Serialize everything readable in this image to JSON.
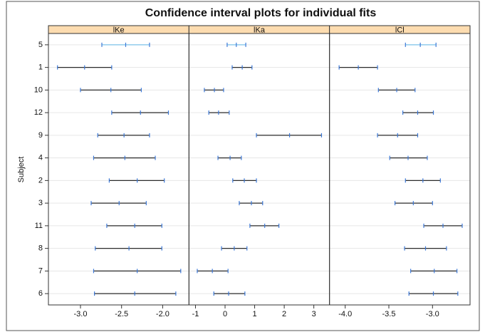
{
  "chart_data": {
    "type": "interval",
    "title": "Confidence interval plots for individual fits",
    "ylabel": "Subject",
    "categories": [
      "5",
      "1",
      "10",
      "12",
      "9",
      "4",
      "2",
      "3",
      "11",
      "8",
      "7",
      "6"
    ],
    "colors": [
      "#7cc3ea",
      "#2b2b2b",
      "#2b2b2b",
      "#2b2b2b",
      "#2b2b2b",
      "#2b2b2b",
      "#2b2b2b",
      "#2b2b2b",
      "#2b2b2b",
      "#2b2b2b",
      "#2b2b2b",
      "#2b2b2b"
    ],
    "tick_color": "#3b78d8",
    "strip_color": "#fddcb0",
    "panels": [
      {
        "name": "lKe",
        "xlim": [
          -3.39,
          -1.68
        ],
        "xticks": [
          {
            "value": -3,
            "label": "-3.0"
          },
          {
            "value": -2.5,
            "label": "-2.5"
          },
          {
            "value": -2,
            "label": "-2.0"
          }
        ],
        "lower": [
          -2.74,
          -3.28,
          -3.0,
          -2.62,
          -2.79,
          -2.84,
          -2.65,
          -2.87,
          -2.68,
          -2.82,
          -2.84,
          -2.83
        ],
        "estimate": [
          -2.45,
          -2.95,
          -2.63,
          -2.27,
          -2.47,
          -2.46,
          -2.31,
          -2.53,
          -2.34,
          -2.41,
          -2.31,
          -2.34
        ],
        "upper": [
          -2.16,
          -2.62,
          -2.26,
          -1.93,
          -2.16,
          -2.09,
          -1.98,
          -2.2,
          -2.01,
          -2.01,
          -1.78,
          -1.84
        ]
      },
      {
        "name": "lKa",
        "xlim": [
          -1.22,
          3.53
        ],
        "xticks": [
          -1,
          0,
          1,
          2,
          3
        ],
        "lower": [
          0.07,
          0.24,
          -0.7,
          -0.55,
          1.06,
          -0.24,
          0.26,
          0.48,
          0.84,
          -0.12,
          -0.94,
          -0.38
        ],
        "estimate": [
          0.38,
          0.58,
          -0.36,
          -0.22,
          2.18,
          0.17,
          0.65,
          0.89,
          1.34,
          0.31,
          -0.43,
          0.12
        ],
        "upper": [
          0.7,
          0.91,
          -0.05,
          0.14,
          3.26,
          0.55,
          1.06,
          1.27,
          1.82,
          0.74,
          0.1,
          0.67
        ]
      },
      {
        "name": "lCl",
        "xlim": [
          -4.18,
          -2.57
        ],
        "xticks": [
          {
            "value": -4,
            "label": "-4.0"
          },
          {
            "value": -3.5,
            "label": "-3.5"
          },
          {
            "value": -3,
            "label": "-3.0"
          }
        ],
        "lower": [
          -3.31,
          -4.07,
          -3.62,
          -3.34,
          -3.63,
          -3.49,
          -3.31,
          -3.43,
          -3.1,
          -3.32,
          -3.25,
          -3.27
        ],
        "estimate": [
          -3.14,
          -3.85,
          -3.41,
          -3.17,
          -3.4,
          -3.28,
          -3.11,
          -3.22,
          -2.88,
          -3.08,
          -2.98,
          -2.99
        ],
        "upper": [
          -2.96,
          -3.63,
          -3.2,
          -2.99,
          -3.17,
          -3.06,
          -2.91,
          -3.0,
          -2.66,
          -2.84,
          -2.72,
          -2.71
        ]
      }
    ]
  }
}
